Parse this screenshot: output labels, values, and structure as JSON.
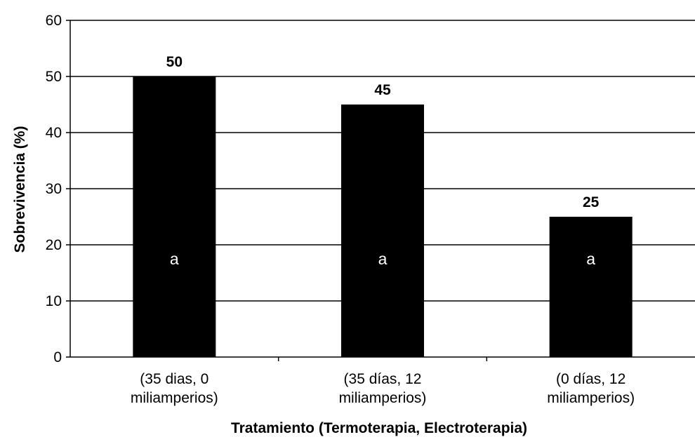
{
  "chart_data": {
    "type": "bar",
    "categories": [
      [
        "(35 dias, 0",
        "miliamperios)"
      ],
      [
        "(35 días, 12",
        "miliamperios)"
      ],
      [
        "(0 días, 12",
        "miliamperios)"
      ]
    ],
    "values": [
      50,
      45,
      25
    ],
    "data_labels": [
      "50",
      "45",
      "25"
    ],
    "significance_letters": [
      "a",
      "a",
      "a"
    ],
    "title": "",
    "xlabel": "Tratamiento (Termoterapia, Electroterapia)",
    "ylabel": "Sobrevivencia (%)",
    "ylim": [
      0,
      60
    ],
    "yticks": [
      0,
      10,
      20,
      30,
      40,
      50,
      60
    ],
    "grid": true,
    "legend": "none",
    "colors": {
      "bar": "#000000",
      "grid": "#000000",
      "background": "#ffffff"
    }
  }
}
